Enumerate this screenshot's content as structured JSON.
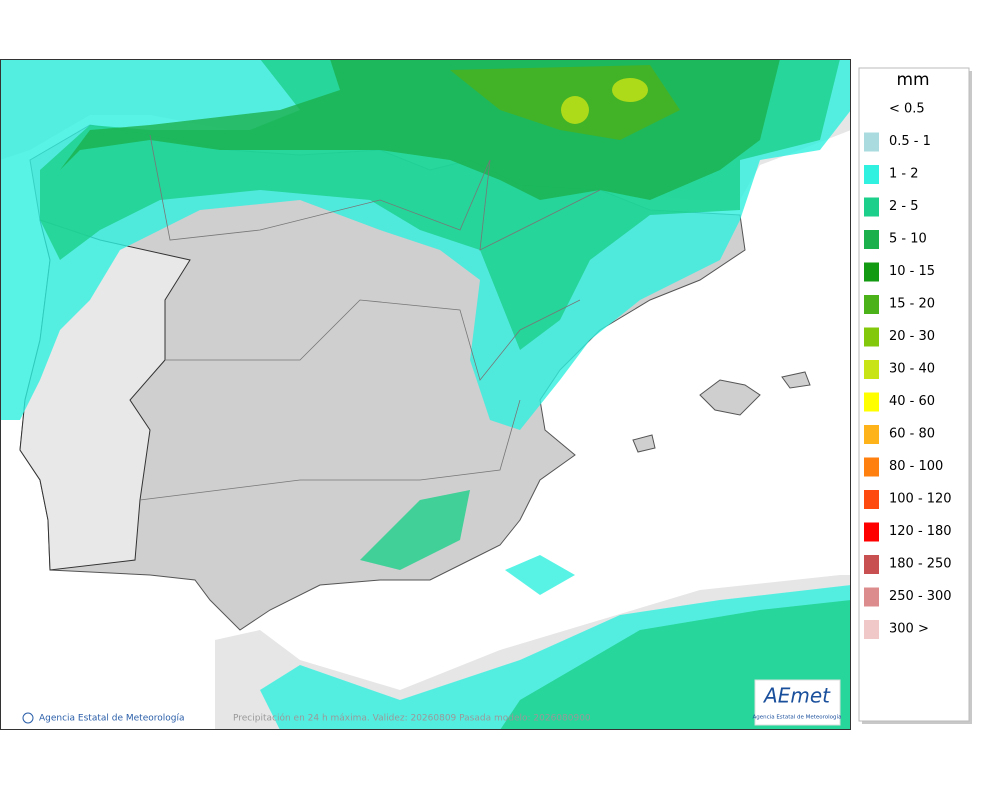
{
  "legend": {
    "unit": "mm",
    "items": [
      {
        "label": "< 0.5"
      },
      {
        "label": "0.5 - 1",
        "color": "#aadcdf"
      },
      {
        "label": "1 - 2",
        "color": "#30f0e0"
      },
      {
        "label": "2 - 5",
        "color": "#1ccf8a"
      },
      {
        "label": "5 - 10",
        "color": "#1bb04c"
      },
      {
        "label": "10 - 15",
        "color": "#129a12"
      },
      {
        "label": "15 - 20",
        "color": "#4cb21a"
      },
      {
        "label": "20 - 30",
        "color": "#84c80c"
      },
      {
        "label": "30 - 40",
        "color": "#c8e416"
      },
      {
        "label": "40 - 60",
        "color": "#ffff00"
      },
      {
        "label": "60 - 80",
        "color": "#ffb31a"
      },
      {
        "label": "80 - 100",
        "color": "#ff7f0f"
      },
      {
        "label": "100 - 120",
        "color": "#ff4a0f"
      },
      {
        "label": "120 - 180",
        "color": "#ff0000"
      },
      {
        "label": "180 - 250",
        "color": "#c85050"
      },
      {
        "label": "250 - 300",
        "color": "#dc8c8c"
      },
      {
        "label": "300 >",
        "color": "#f0c8c8"
      }
    ]
  },
  "footer": {
    "credit": "Agencia Estatal de Meteorología",
    "caption": "Precipitación en 24 h máxima. Validez: 20260809 Pasada modelo: 2026080900",
    "logo": {
      "text": "AEmet",
      "subtitle": "Agencia Estatal de Meteorología"
    }
  }
}
